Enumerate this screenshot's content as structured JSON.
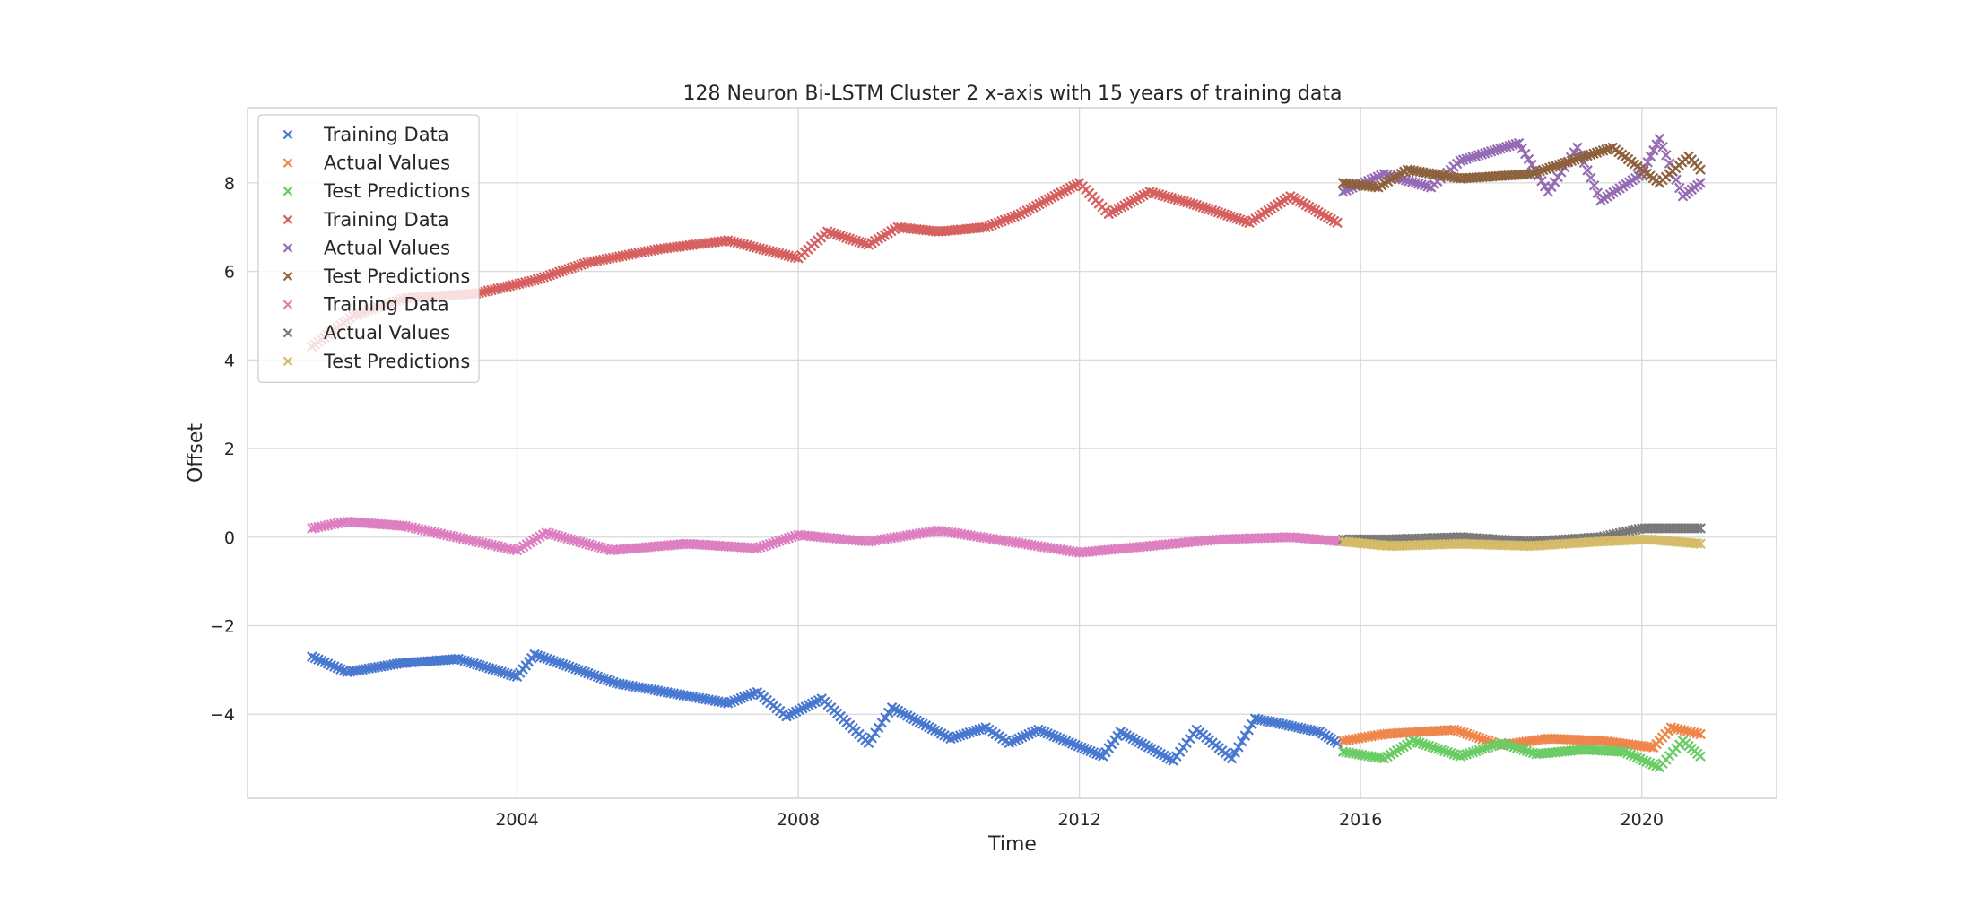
{
  "chart_data": {
    "type": "scatter",
    "title": "128 Neuron Bi-LSTM Cluster 2 x-axis with 15 years of training data",
    "xlabel": "Time",
    "ylabel": "Offset",
    "x_is_date": true,
    "xlim": [
      "2000-03-01",
      "2021-12-01"
    ],
    "ylim": [
      -5.9,
      9.7
    ],
    "x_ticks": [
      "2004",
      "2008",
      "2012",
      "2016",
      "2020"
    ],
    "y_ticks": [
      "−4",
      "−2",
      "0",
      "2",
      "4",
      "6",
      "8"
    ],
    "grid": true,
    "legend_position": "top-left",
    "marker": "x",
    "series": [
      {
        "name": "Training Data",
        "color": "#4878d0",
        "points": [
          [
            "2001-02-01",
            -2.7
          ],
          [
            "2001-08-01",
            -3.05
          ],
          [
            "2002-05-01",
            -2.85
          ],
          [
            "2003-03-01",
            -2.75
          ],
          [
            "2004-01-01",
            -3.15
          ],
          [
            "2004-04-01",
            -2.65
          ],
          [
            "2005-06-01",
            -3.3
          ],
          [
            "2007-01-01",
            -3.75
          ],
          [
            "2007-06-01",
            -3.5
          ],
          [
            "2007-11-01",
            -4.05
          ],
          [
            "2008-05-01",
            -3.65
          ],
          [
            "2009-01-01",
            -4.65
          ],
          [
            "2009-05-01",
            -3.85
          ],
          [
            "2010-03-01",
            -4.55
          ],
          [
            "2010-09-01",
            -4.3
          ],
          [
            "2011-01-01",
            -4.65
          ],
          [
            "2011-06-01",
            -4.35
          ],
          [
            "2012-05-01",
            -4.95
          ],
          [
            "2012-08-01",
            -4.4
          ],
          [
            "2013-05-01",
            -5.05
          ],
          [
            "2013-09-01",
            -4.35
          ],
          [
            "2014-03-01",
            -5.0
          ],
          [
            "2014-07-01",
            -4.1
          ],
          [
            "2015-06-01",
            -4.4
          ],
          [
            "2015-09-01",
            -4.65
          ]
        ]
      },
      {
        "name": "Actual Values",
        "color": "#ee854a",
        "points": [
          [
            "2015-10-01",
            -4.6
          ],
          [
            "2016-05-01",
            -4.45
          ],
          [
            "2017-05-01",
            -4.35
          ],
          [
            "2018-01-01",
            -4.7
          ],
          [
            "2018-09-01",
            -4.55
          ],
          [
            "2019-06-01",
            -4.6
          ],
          [
            "2020-03-01",
            -4.75
          ],
          [
            "2020-06-01",
            -4.3
          ],
          [
            "2020-11-01",
            -4.45
          ]
        ]
      },
      {
        "name": "Test Predictions",
        "color": "#6acc64",
        "points": [
          [
            "2015-10-01",
            -4.85
          ],
          [
            "2016-05-01",
            -5.0
          ],
          [
            "2016-10-01",
            -4.6
          ],
          [
            "2017-06-01",
            -4.95
          ],
          [
            "2018-01-01",
            -4.65
          ],
          [
            "2018-07-01",
            -4.9
          ],
          [
            "2019-03-01",
            -4.8
          ],
          [
            "2019-10-01",
            -4.85
          ],
          [
            "2020-04-01",
            -5.2
          ],
          [
            "2020-08-01",
            -4.6
          ],
          [
            "2020-11-01",
            -4.95
          ]
        ]
      },
      {
        "name": "Training Data",
        "color": "#d65f5f",
        "points": [
          [
            "2001-02-01",
            4.3
          ],
          [
            "2001-09-01",
            5.0
          ],
          [
            "2002-06-01",
            5.4
          ],
          [
            "2003-06-01",
            5.5
          ],
          [
            "2004-04-01",
            5.8
          ],
          [
            "2005-01-01",
            6.2
          ],
          [
            "2006-01-01",
            6.5
          ],
          [
            "2007-01-01",
            6.7
          ],
          [
            "2008-01-01",
            6.3
          ],
          [
            "2008-06-01",
            6.9
          ],
          [
            "2009-01-01",
            6.6
          ],
          [
            "2009-06-01",
            7.0
          ],
          [
            "2010-01-01",
            6.9
          ],
          [
            "2010-09-01",
            7.0
          ],
          [
            "2011-03-01",
            7.3
          ],
          [
            "2012-01-01",
            8.0
          ],
          [
            "2012-06-01",
            7.3
          ],
          [
            "2013-01-01",
            7.8
          ],
          [
            "2013-09-01",
            7.5
          ],
          [
            "2014-06-01",
            7.1
          ],
          [
            "2015-01-01",
            7.7
          ],
          [
            "2015-09-01",
            7.1
          ]
        ]
      },
      {
        "name": "Actual Values",
        "color": "#956cb4",
        "points": [
          [
            "2015-10-01",
            7.8
          ],
          [
            "2016-05-01",
            8.2
          ],
          [
            "2017-01-01",
            7.9
          ],
          [
            "2017-06-01",
            8.5
          ],
          [
            "2018-04-01",
            8.9
          ],
          [
            "2018-09-01",
            7.8
          ],
          [
            "2019-02-01",
            8.8
          ],
          [
            "2019-06-01",
            7.6
          ],
          [
            "2020-01-01",
            8.2
          ],
          [
            "2020-04-01",
            9.0
          ],
          [
            "2020-08-01",
            7.7
          ],
          [
            "2020-11-01",
            8.0
          ]
        ]
      },
      {
        "name": "Test Predictions",
        "color": "#8c613c",
        "points": [
          [
            "2015-10-01",
            8.0
          ],
          [
            "2016-04-01",
            7.9
          ],
          [
            "2016-09-01",
            8.3
          ],
          [
            "2017-06-01",
            8.1
          ],
          [
            "2018-06-01",
            8.2
          ],
          [
            "2019-01-01",
            8.5
          ],
          [
            "2019-08-01",
            8.8
          ],
          [
            "2020-04-01",
            8.0
          ],
          [
            "2020-09-01",
            8.6
          ],
          [
            "2020-11-01",
            8.3
          ]
        ]
      },
      {
        "name": "Training Data",
        "color": "#dc7ec0",
        "points": [
          [
            "2001-02-01",
            0.2
          ],
          [
            "2001-08-01",
            0.35
          ],
          [
            "2002-06-01",
            0.25
          ],
          [
            "2003-06-01",
            -0.1
          ],
          [
            "2004-01-01",
            -0.3
          ],
          [
            "2004-06-01",
            0.1
          ],
          [
            "2005-05-01",
            -0.3
          ],
          [
            "2006-06-01",
            -0.15
          ],
          [
            "2007-06-01",
            -0.25
          ],
          [
            "2008-01-01",
            0.05
          ],
          [
            "2009-01-01",
            -0.1
          ],
          [
            "2010-01-01",
            0.15
          ],
          [
            "2011-01-01",
            -0.1
          ],
          [
            "2012-01-01",
            -0.35
          ],
          [
            "2013-01-01",
            -0.2
          ],
          [
            "2014-01-01",
            -0.05
          ],
          [
            "2015-01-01",
            0.0
          ],
          [
            "2015-10-01",
            -0.1
          ]
        ]
      },
      {
        "name": "Actual Values",
        "color": "#797979",
        "points": [
          [
            "2015-10-01",
            -0.05
          ],
          [
            "2016-06-01",
            -0.05
          ],
          [
            "2017-06-01",
            0.0
          ],
          [
            "2018-06-01",
            -0.1
          ],
          [
            "2019-06-01",
            0.0
          ],
          [
            "2020-01-01",
            0.2
          ],
          [
            "2020-11-01",
            0.2
          ]
        ]
      },
      {
        "name": "Test Predictions",
        "color": "#d5bb67",
        "points": [
          [
            "2015-10-01",
            -0.1
          ],
          [
            "2016-06-01",
            -0.2
          ],
          [
            "2017-06-01",
            -0.15
          ],
          [
            "2018-06-01",
            -0.2
          ],
          [
            "2019-06-01",
            -0.1
          ],
          [
            "2020-02-01",
            -0.05
          ],
          [
            "2020-11-01",
            -0.15
          ]
        ]
      }
    ]
  }
}
